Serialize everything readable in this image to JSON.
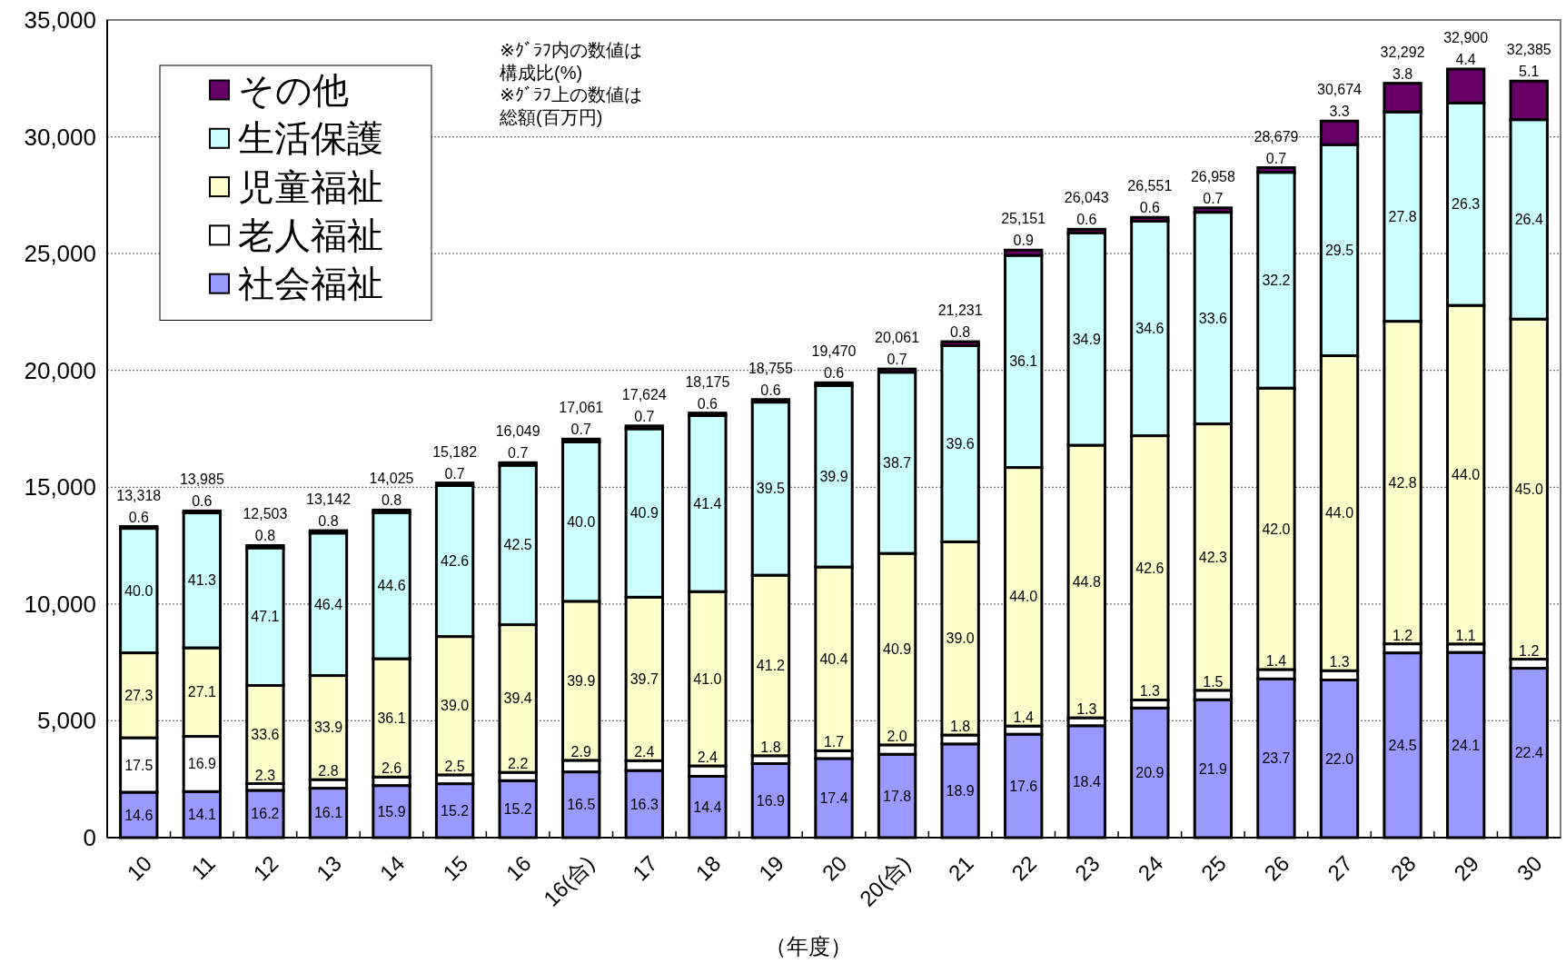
{
  "chart_data": {
    "type": "bar",
    "stacked": true,
    "categories": [
      "10",
      "11",
      "12",
      "13",
      "14",
      "15",
      "16",
      "16(合)",
      "17",
      "18",
      "19",
      "20",
      "20(合)",
      "21",
      "22",
      "23",
      "24",
      "25",
      "26",
      "27",
      "28",
      "29",
      "30"
    ],
    "series": [
      {
        "name": "社会福祉",
        "color": "#9999ff",
        "values": [
          1944,
          1972,
          2025,
          2116,
          2230,
          2308,
          2440,
          2815,
          2873,
          2626,
          3169,
          3388,
          3570,
          4011,
          4427,
          4792,
          5549,
          5904,
          6797,
          6748,
          7909,
          7929,
          7251
        ]
      },
      {
        "name": "老人福祉",
        "color": "#ffffff",
        "values": [
          2331,
          2363,
          288,
          368,
          365,
          380,
          353,
          495,
          423,
          445,
          338,
          331,
          401,
          382,
          352,
          339,
          345,
          404,
          401,
          399,
          388,
          362,
          389
        ]
      },
      {
        "name": "児童福祉",
        "color": "#ffffcc",
        "values": [
          3636,
          3790,
          4201,
          4455,
          5063,
          5921,
          6323,
          6808,
          6997,
          7460,
          7727,
          7866,
          8196,
          8270,
          11066,
          11667,
          11311,
          11403,
          12045,
          13482,
          13806,
          14492,
          14558
        ]
      },
      {
        "name": "生活保護",
        "color": "#ccffff",
        "values": [
          5327,
          5776,
          5889,
          6098,
          6255,
          6467,
          6821,
          6824,
          7208,
          7533,
          7408,
          7768,
          7754,
          8398,
          9080,
          9089,
          9187,
          9058,
          9235,
          9034,
          8962,
          8669,
          8535
        ]
      },
      {
        "name": "その他",
        "color": "#660066",
        "values": [
          80,
          84,
          100,
          105,
          112,
          106,
          112,
          119,
          123,
          111,
          113,
          117,
          140,
          170,
          226,
          156,
          159,
          189,
          201,
          1011,
          1227,
          1448,
          1652
        ]
      }
    ],
    "totals": [
      "13,318",
      "13,985",
      "12,503",
      "13,142",
      "14,025",
      "15,182",
      "16,049",
      "17,061",
      "17,624",
      "18,175",
      "18,755",
      "19,470",
      "20,061",
      "21,231",
      "25,151",
      "26,043",
      "26,551",
      "26,958",
      "28,679",
      "30,674",
      "32,292",
      "32,900",
      "32,385"
    ],
    "ylim": [
      0,
      35000
    ],
    "yticks": [
      0,
      {
        "value": 5000,
        "label": "5,000"
      },
      {
        "value": 10000,
        "label": "10,000"
      },
      {
        "value": 15000,
        "label": "15,000"
      },
      {
        "value": 20000,
        "label": "20,000"
      },
      {
        "value": 25000,
        "label": "25,000"
      },
      {
        "value": 30000,
        "label": "30,000"
      },
      {
        "value": 35000,
        "label": "35,000"
      }
    ],
    "xlabel": "（年度）",
    "annotations": [
      "※ｸﾞﾗﾌ内の数値は構成比(%)",
      "※ｸﾞﾗﾌ上の数値は総額(百万円)",
      "14.6",
      "17.5",
      "27.3",
      "40.0",
      "0.6",
      "14.1",
      "16.9",
      "27.1",
      "41.3",
      "0.6",
      "16.2",
      "2.3",
      "33.6",
      "47.1",
      "0.8",
      "16.1",
      "2.8",
      "33.9",
      "46.4",
      "0.8",
      "15.9",
      "2.6",
      "36.1",
      "44.6",
      "0.8",
      "15.2",
      "2.5",
      "39.0",
      "42.6",
      "0.7",
      "15.2",
      "2.2",
      "39.4",
      "42.5",
      "0.7",
      "16.5",
      "2.9",
      "39.9",
      "40.0",
      "0.7",
      "16.3",
      "2.4",
      "39.7",
      "40.9",
      "0.7",
      "14.4",
      "2.4",
      "41.0",
      "41.4",
      "0.6",
      "16.9",
      "1.8",
      "41.2",
      "39.5",
      "0.6",
      "17.4",
      "1.7",
      "40.4",
      "39.9",
      "0.6",
      "17.8",
      "2.0",
      "40.9",
      "38.7",
      "0.7",
      "18.9",
      "1.8",
      "39.0",
      "39.6",
      "0.8",
      "17.6",
      "1.4",
      "44.0",
      "36.1",
      "0.9",
      "18.4",
      "1.3",
      "44.8",
      "34.9",
      "0.6",
      "20.9",
      "1.3",
      "42.6",
      "34.6",
      "0.6",
      "21.9",
      "1.5",
      "42.3",
      "33.6",
      "0.7",
      "23.7",
      "1.4",
      "42.0",
      "32.2",
      "0.7",
      "22.0",
      "1.3",
      "44.0",
      "29.5",
      "3.3",
      "24.5",
      "1.2",
      "42.8",
      "27.8",
      "3.8",
      "24.1",
      "1.1",
      "44.0",
      "26.3",
      "4.4",
      "22.4",
      "1.2",
      "45.0",
      "26.4",
      "5.1"
    ],
    "legend": "top left",
    "grid": "y"
  }
}
